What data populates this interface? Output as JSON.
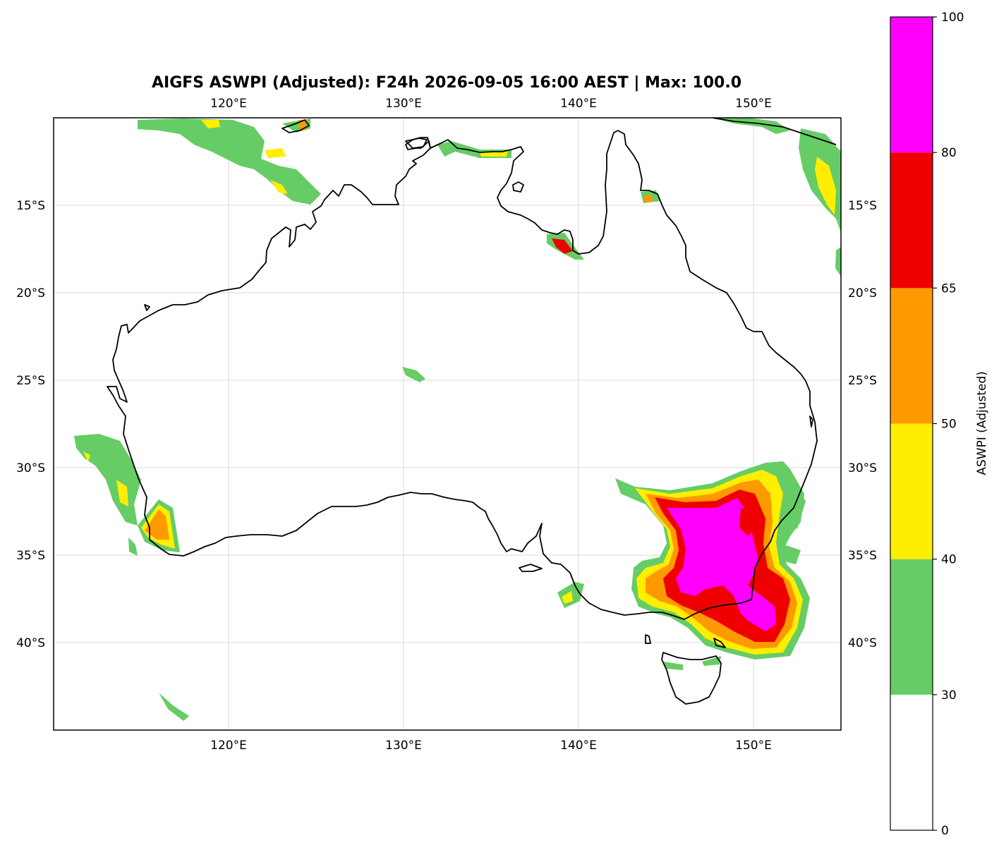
{
  "title": "AIGFS ASWPI (Adjusted): F24h 2026-09-05 16:00 AEST | Max: 100.0",
  "map": {
    "lon_range": [
      110,
      155
    ],
    "lat_range": [
      -45,
      -10
    ],
    "lon_ticks": [
      {
        "value": 120,
        "label": "120°E"
      },
      {
        "value": 130,
        "label": "130°E"
      },
      {
        "value": 140,
        "label": "140°E"
      },
      {
        "value": 150,
        "label": "150°E"
      }
    ],
    "lat_ticks": [
      {
        "value": -15,
        "label": "15°S"
      },
      {
        "value": -20,
        "label": "20°S"
      },
      {
        "value": -25,
        "label": "25°S"
      },
      {
        "value": -30,
        "label": "30°S"
      },
      {
        "value": -35,
        "label": "35°S"
      },
      {
        "value": -40,
        "label": "40°S"
      }
    ],
    "gridlines": true
  },
  "colorbar": {
    "label": "ASWPI (Adjusted)",
    "levels": [
      {
        "from": 0,
        "to": 30,
        "color": "#ffffff",
        "label": "0"
      },
      {
        "from": 30,
        "to": 40,
        "color": "#66cc66",
        "label": "30"
      },
      {
        "from": 40,
        "to": 50,
        "color": "#ffee00",
        "label": "40"
      },
      {
        "from": 50,
        "to": 65,
        "color": "#ff9900",
        "label": "50"
      },
      {
        "from": 65,
        "to": 80,
        "color": "#ee0000",
        "label": "65"
      },
      {
        "from": 80,
        "to": 100,
        "color": "#ff00ff",
        "label": "80"
      }
    ],
    "top_label": "100"
  },
  "colors": {
    "green": "#66cc66",
    "yellow": "#ffee00",
    "orange": "#ff9900",
    "red": "#ee0000",
    "magenta": "#ff00ff"
  }
}
